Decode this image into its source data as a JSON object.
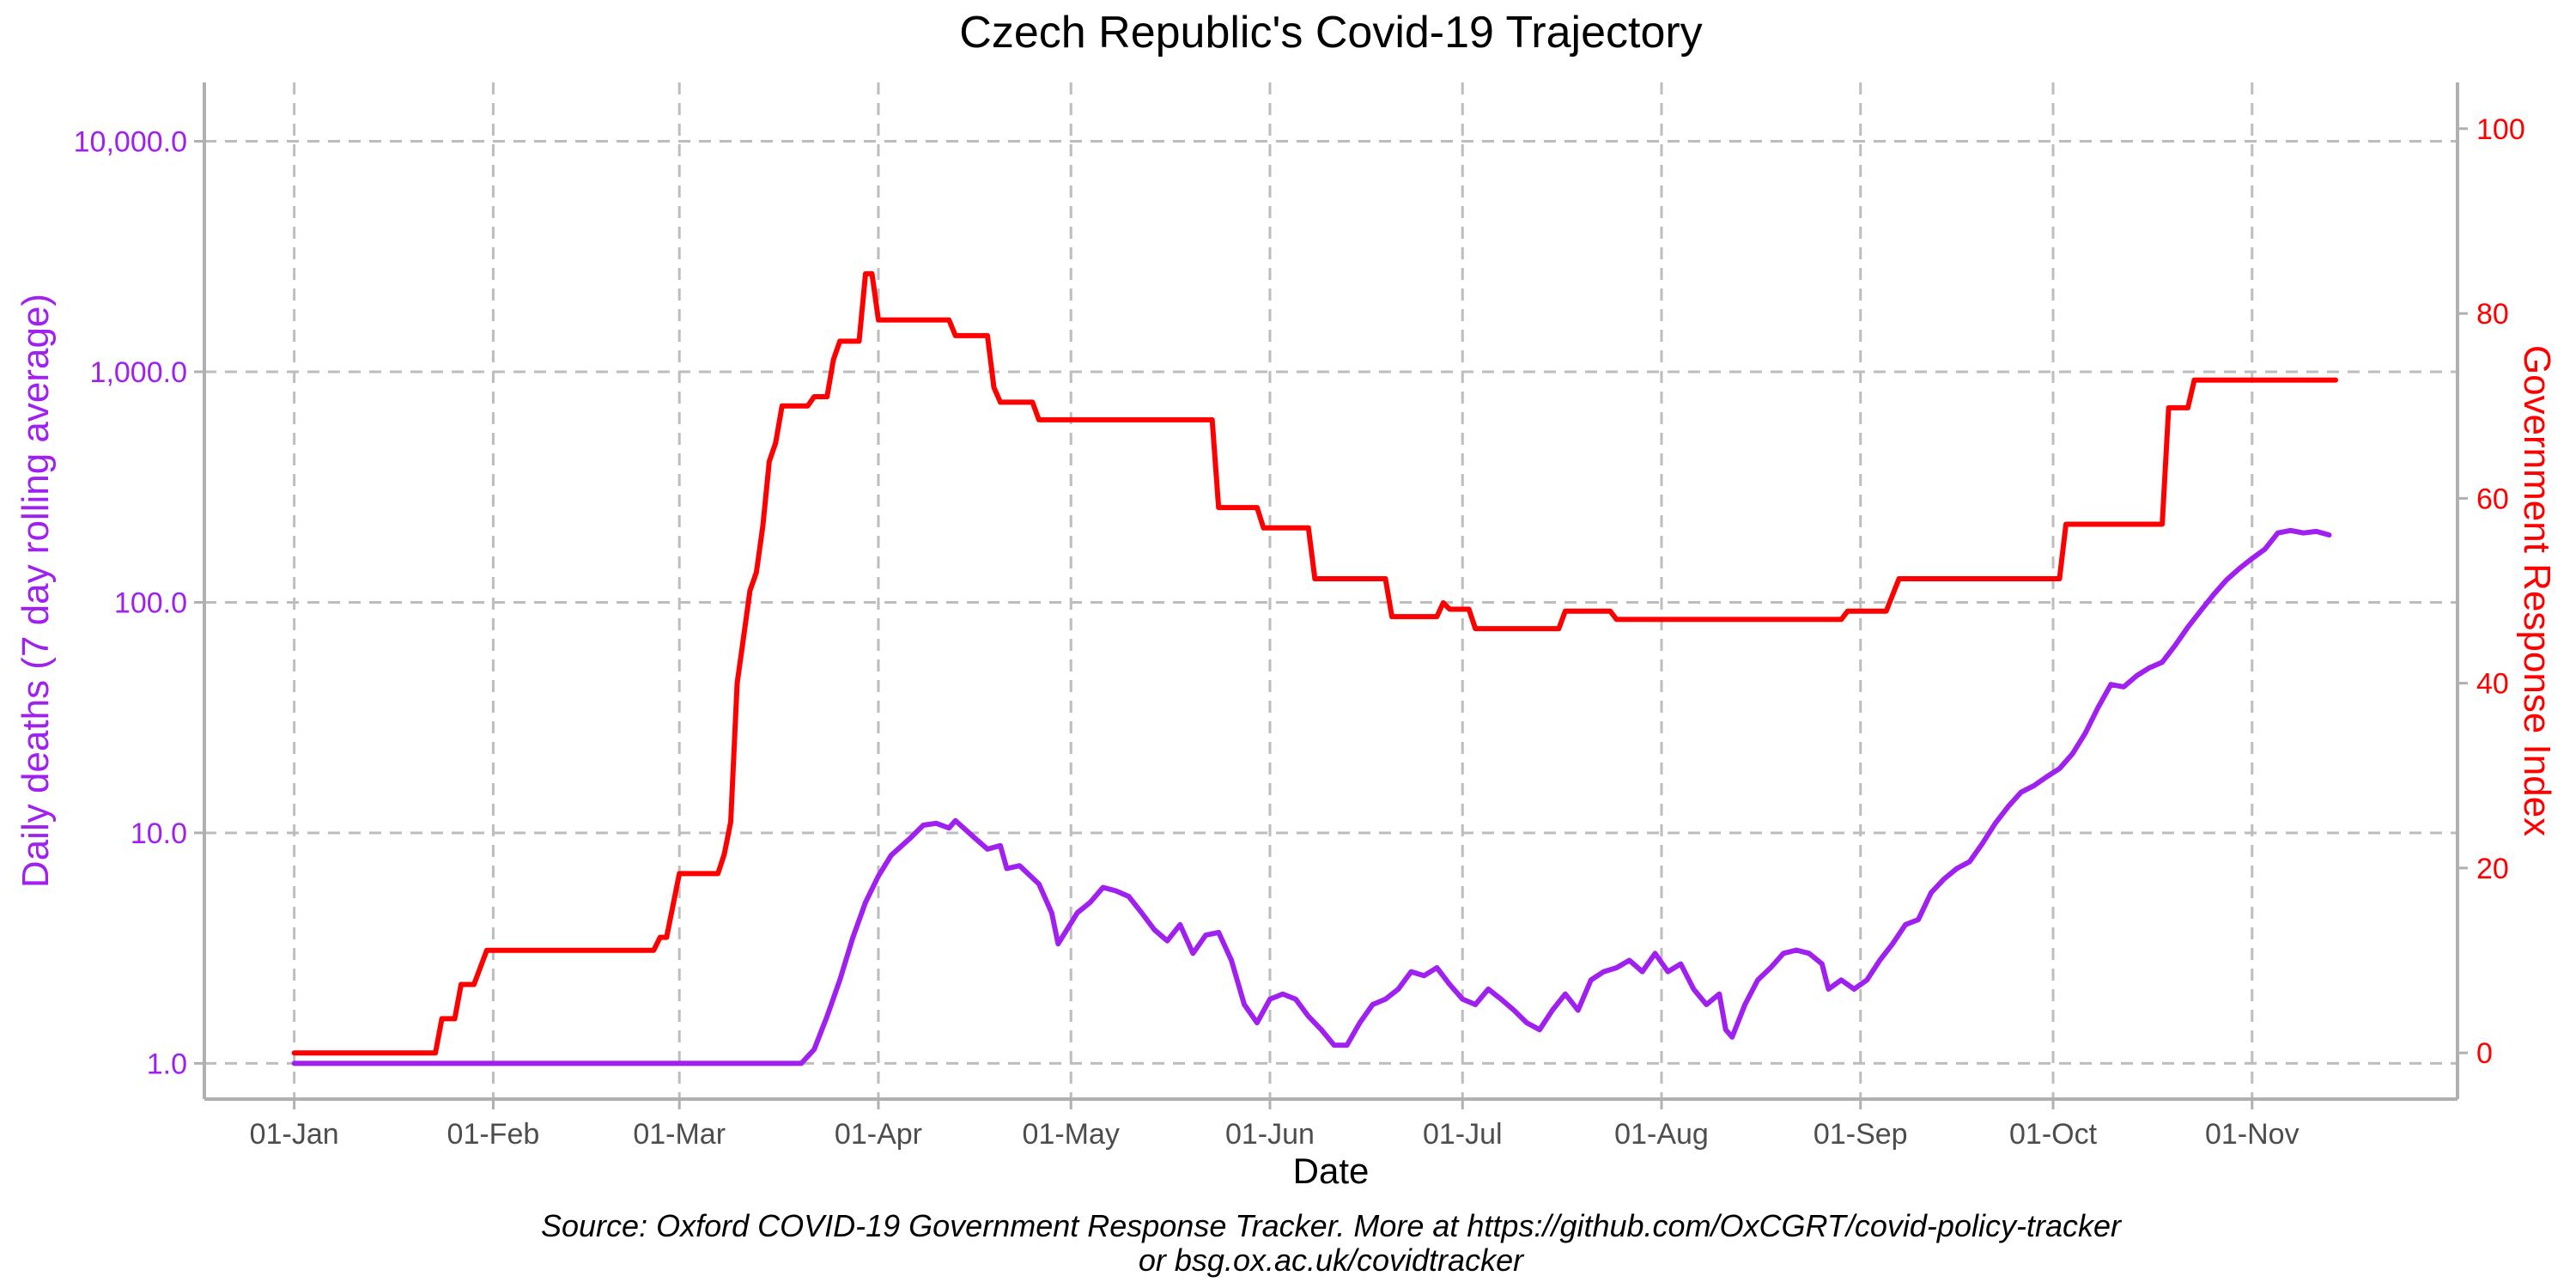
{
  "title": "Czech Republic's Covid-19 Trajectory",
  "source_line1": "Source: Oxford COVID-19 Government Response Tracker. More at https://github.com/OxCGRT/covid-policy-tracker",
  "source_line2": "or bsg.ox.ac.uk/covidtracker",
  "colors": {
    "deaths": "#a020f0",
    "stringency": "#ff0000",
    "grid": "#bdbdbd",
    "axis": "#b0b0b0",
    "x_tick": "#4d4d4d"
  },
  "chart_data": {
    "type": "line",
    "title": "Czech Republic's Covid-19 Trajectory",
    "xlabel": "Date",
    "ylabel_left": "Daily deaths (7 day rolling average)",
    "ylabel_right": "Government Response Index",
    "left_axis_scale": "log10",
    "ylim_left": [
      0.7,
      18000
    ],
    "ylim_right": [
      -5,
      105
    ],
    "xlim": [
      "2019-12-18",
      "2020-12-03"
    ],
    "grid": true,
    "x_ticks": [
      {
        "date": "2020-01-01",
        "label": "01-Jan"
      },
      {
        "date": "2020-02-01",
        "label": "01-Feb"
      },
      {
        "date": "2020-03-01",
        "label": "01-Mar"
      },
      {
        "date": "2020-04-01",
        "label": "01-Apr"
      },
      {
        "date": "2020-05-01",
        "label": "01-May"
      },
      {
        "date": "2020-06-01",
        "label": "01-Jun"
      },
      {
        "date": "2020-07-01",
        "label": "01-Jul"
      },
      {
        "date": "2020-08-01",
        "label": "01-Aug"
      },
      {
        "date": "2020-09-01",
        "label": "01-Sep"
      },
      {
        "date": "2020-10-01",
        "label": "01-Oct"
      },
      {
        "date": "2020-11-01",
        "label": "01-Nov"
      }
    ],
    "y_ticks_left": [
      {
        "value": 1,
        "label": "1.0"
      },
      {
        "value": 10,
        "label": "10.0"
      },
      {
        "value": 100,
        "label": "100.0"
      },
      {
        "value": 1000,
        "label": "1,000.0"
      },
      {
        "value": 10000,
        "label": "10,000.0"
      }
    ],
    "y_ticks_right": [
      {
        "value": 0,
        "label": "0"
      },
      {
        "value": 20,
        "label": "20"
      },
      {
        "value": 40,
        "label": "40"
      },
      {
        "value": 60,
        "label": "60"
      },
      {
        "value": 80,
        "label": "80"
      },
      {
        "value": 100,
        "label": "100"
      }
    ],
    "series": [
      {
        "name": "Daily deaths (7 day rolling average)",
        "axis": "left",
        "points": [
          [
            "2020-01-01",
            1.0
          ],
          [
            "2020-03-20",
            1.0
          ],
          [
            "2020-03-22",
            1.15
          ],
          [
            "2020-03-24",
            1.6
          ],
          [
            "2020-03-26",
            2.3
          ],
          [
            "2020-03-28",
            3.5
          ],
          [
            "2020-03-30",
            5.0
          ],
          [
            "2020-04-01",
            6.5
          ],
          [
            "2020-04-03",
            8.0
          ],
          [
            "2020-04-06",
            9.5
          ],
          [
            "2020-04-08",
            10.8
          ],
          [
            "2020-04-10",
            11.0
          ],
          [
            "2020-04-12",
            10.5
          ],
          [
            "2020-04-13",
            11.3
          ],
          [
            "2020-04-16",
            9.5
          ],
          [
            "2020-04-18",
            8.5
          ],
          [
            "2020-04-20",
            8.8
          ],
          [
            "2020-04-21",
            7.0
          ],
          [
            "2020-04-23",
            7.2
          ],
          [
            "2020-04-26",
            6.0
          ],
          [
            "2020-04-28",
            4.5
          ],
          [
            "2020-04-29",
            3.3
          ],
          [
            "2020-05-02",
            4.5
          ],
          [
            "2020-05-04",
            5.0
          ],
          [
            "2020-05-06",
            5.8
          ],
          [
            "2020-05-08",
            5.6
          ],
          [
            "2020-05-10",
            5.3
          ],
          [
            "2020-05-12",
            4.5
          ],
          [
            "2020-05-14",
            3.8
          ],
          [
            "2020-05-16",
            3.4
          ],
          [
            "2020-05-18",
            4.0
          ],
          [
            "2020-05-20",
            3.0
          ],
          [
            "2020-05-22",
            3.6
          ],
          [
            "2020-05-24",
            3.7
          ],
          [
            "2020-05-26",
            2.8
          ],
          [
            "2020-05-28",
            1.8
          ],
          [
            "2020-05-30",
            1.5
          ],
          [
            "2020-06-01",
            1.9
          ],
          [
            "2020-06-03",
            2.0
          ],
          [
            "2020-06-05",
            1.9
          ],
          [
            "2020-06-07",
            1.6
          ],
          [
            "2020-06-09",
            1.4
          ],
          [
            "2020-06-11",
            1.2
          ],
          [
            "2020-06-13",
            1.2
          ],
          [
            "2020-06-15",
            1.5
          ],
          [
            "2020-06-17",
            1.8
          ],
          [
            "2020-06-19",
            1.9
          ],
          [
            "2020-06-21",
            2.1
          ],
          [
            "2020-06-23",
            2.5
          ],
          [
            "2020-06-25",
            2.4
          ],
          [
            "2020-06-27",
            2.6
          ],
          [
            "2020-06-29",
            2.2
          ],
          [
            "2020-07-01",
            1.9
          ],
          [
            "2020-07-03",
            1.8
          ],
          [
            "2020-07-05",
            2.1
          ],
          [
            "2020-07-07",
            1.9
          ],
          [
            "2020-07-09",
            1.7
          ],
          [
            "2020-07-11",
            1.5
          ],
          [
            "2020-07-13",
            1.4
          ],
          [
            "2020-07-15",
            1.7
          ],
          [
            "2020-07-17",
            2.0
          ],
          [
            "2020-07-19",
            1.7
          ],
          [
            "2020-07-21",
            2.3
          ],
          [
            "2020-07-23",
            2.5
          ],
          [
            "2020-07-25",
            2.6
          ],
          [
            "2020-07-27",
            2.8
          ],
          [
            "2020-07-29",
            2.5
          ],
          [
            "2020-07-31",
            3.0
          ],
          [
            "2020-08-02",
            2.5
          ],
          [
            "2020-08-04",
            2.7
          ],
          [
            "2020-08-06",
            2.1
          ],
          [
            "2020-08-08",
            1.8
          ],
          [
            "2020-08-10",
            2.0
          ],
          [
            "2020-08-11",
            1.4
          ],
          [
            "2020-08-12",
            1.3
          ],
          [
            "2020-08-14",
            1.8
          ],
          [
            "2020-08-16",
            2.3
          ],
          [
            "2020-08-18",
            2.6
          ],
          [
            "2020-08-20",
            3.0
          ],
          [
            "2020-08-22",
            3.1
          ],
          [
            "2020-08-24",
            3.0
          ],
          [
            "2020-08-26",
            2.7
          ],
          [
            "2020-08-27",
            2.1
          ],
          [
            "2020-08-29",
            2.3
          ],
          [
            "2020-08-31",
            2.1
          ],
          [
            "2020-09-02",
            2.3
          ],
          [
            "2020-09-04",
            2.8
          ],
          [
            "2020-09-06",
            3.3
          ],
          [
            "2020-09-08",
            4.0
          ],
          [
            "2020-09-10",
            4.2
          ],
          [
            "2020-09-12",
            5.5
          ],
          [
            "2020-09-14",
            6.3
          ],
          [
            "2020-09-16",
            7.0
          ],
          [
            "2020-09-18",
            7.5
          ],
          [
            "2020-09-20",
            9.0
          ],
          [
            "2020-09-22",
            11.0
          ],
          [
            "2020-09-24",
            13.0
          ],
          [
            "2020-09-26",
            15.0
          ],
          [
            "2020-09-28",
            16.0
          ],
          [
            "2020-09-30",
            17.5
          ],
          [
            "2020-10-02",
            19.0
          ],
          [
            "2020-10-04",
            22.0
          ],
          [
            "2020-10-06",
            27.0
          ],
          [
            "2020-10-08",
            35.0
          ],
          [
            "2020-10-10",
            44.0
          ],
          [
            "2020-10-12",
            43.0
          ],
          [
            "2020-10-14",
            48.0
          ],
          [
            "2020-10-16",
            52.0
          ],
          [
            "2020-10-18",
            55.0
          ],
          [
            "2020-10-20",
            65.0
          ],
          [
            "2020-10-22",
            78.0
          ],
          [
            "2020-10-24",
            92.0
          ],
          [
            "2020-10-26",
            108.0
          ],
          [
            "2020-10-28",
            125.0
          ],
          [
            "2020-10-30",
            140.0
          ],
          [
            "2020-11-01",
            155.0
          ],
          [
            "2020-11-03",
            170.0
          ],
          [
            "2020-11-05",
            200.0
          ],
          [
            "2020-11-07",
            205.0
          ],
          [
            "2020-11-09",
            200.0
          ],
          [
            "2020-11-11",
            203.0
          ],
          [
            "2020-11-13",
            196.0
          ]
        ]
      },
      {
        "name": "Government Response Index",
        "axis": "right",
        "points": [
          [
            "2020-01-01",
            0
          ],
          [
            "2020-01-23",
            0
          ],
          [
            "2020-01-24",
            3.7
          ],
          [
            "2020-01-26",
            3.7
          ],
          [
            "2020-01-27",
            7.4
          ],
          [
            "2020-01-29",
            7.4
          ],
          [
            "2020-01-31",
            11.1
          ],
          [
            "2020-02-26",
            11.1
          ],
          [
            "2020-02-27",
            12.5
          ],
          [
            "2020-02-28",
            12.5
          ],
          [
            "2020-03-01",
            19.4
          ],
          [
            "2020-03-07",
            19.4
          ],
          [
            "2020-03-08",
            21.5
          ],
          [
            "2020-03-09",
            25.0
          ],
          [
            "2020-03-10",
            40.0
          ],
          [
            "2020-03-11",
            45.0
          ],
          [
            "2020-03-12",
            50.0
          ],
          [
            "2020-03-13",
            52.0
          ],
          [
            "2020-03-14",
            57.0
          ],
          [
            "2020-03-15",
            64.0
          ],
          [
            "2020-03-16",
            66.0
          ],
          [
            "2020-03-17",
            70.0
          ],
          [
            "2020-03-21",
            70.0
          ],
          [
            "2020-03-22",
            71.0
          ],
          [
            "2020-03-24",
            71.0
          ],
          [
            "2020-03-25",
            75.0
          ],
          [
            "2020-03-26",
            77.0
          ],
          [
            "2020-03-29",
            77.0
          ],
          [
            "2020-03-30",
            84.3
          ],
          [
            "2020-03-31",
            84.3
          ],
          [
            "2020-04-01",
            79.3
          ],
          [
            "2020-04-12",
            79.3
          ],
          [
            "2020-04-13",
            77.6
          ],
          [
            "2020-04-18",
            77.6
          ],
          [
            "2020-04-19",
            72.0
          ],
          [
            "2020-04-20",
            70.4
          ],
          [
            "2020-04-25",
            70.4
          ],
          [
            "2020-04-26",
            68.5
          ],
          [
            "2020-05-23",
            68.5
          ],
          [
            "2020-05-24",
            59.0
          ],
          [
            "2020-05-30",
            59.0
          ],
          [
            "2020-05-31",
            56.8
          ],
          [
            "2020-06-07",
            56.8
          ],
          [
            "2020-06-08",
            51.3
          ],
          [
            "2020-06-19",
            51.3
          ],
          [
            "2020-06-20",
            47.2
          ],
          [
            "2020-06-27",
            47.2
          ],
          [
            "2020-06-28",
            48.7
          ],
          [
            "2020-06-29",
            48.0
          ],
          [
            "2020-07-02",
            48.0
          ],
          [
            "2020-07-03",
            45.9
          ],
          [
            "2020-07-16",
            45.9
          ],
          [
            "2020-07-17",
            47.8
          ],
          [
            "2020-07-24",
            47.8
          ],
          [
            "2020-07-25",
            46.9
          ],
          [
            "2020-08-29",
            46.9
          ],
          [
            "2020-08-30",
            47.8
          ],
          [
            "2020-09-05",
            47.8
          ],
          [
            "2020-09-07",
            51.3
          ],
          [
            "2020-10-02",
            51.3
          ],
          [
            "2020-10-03",
            57.2
          ],
          [
            "2020-10-18",
            57.2
          ],
          [
            "2020-10-19",
            69.8
          ],
          [
            "2020-10-22",
            69.8
          ],
          [
            "2020-10-23",
            72.8
          ],
          [
            "2020-11-14",
            72.8
          ]
        ]
      }
    ]
  }
}
